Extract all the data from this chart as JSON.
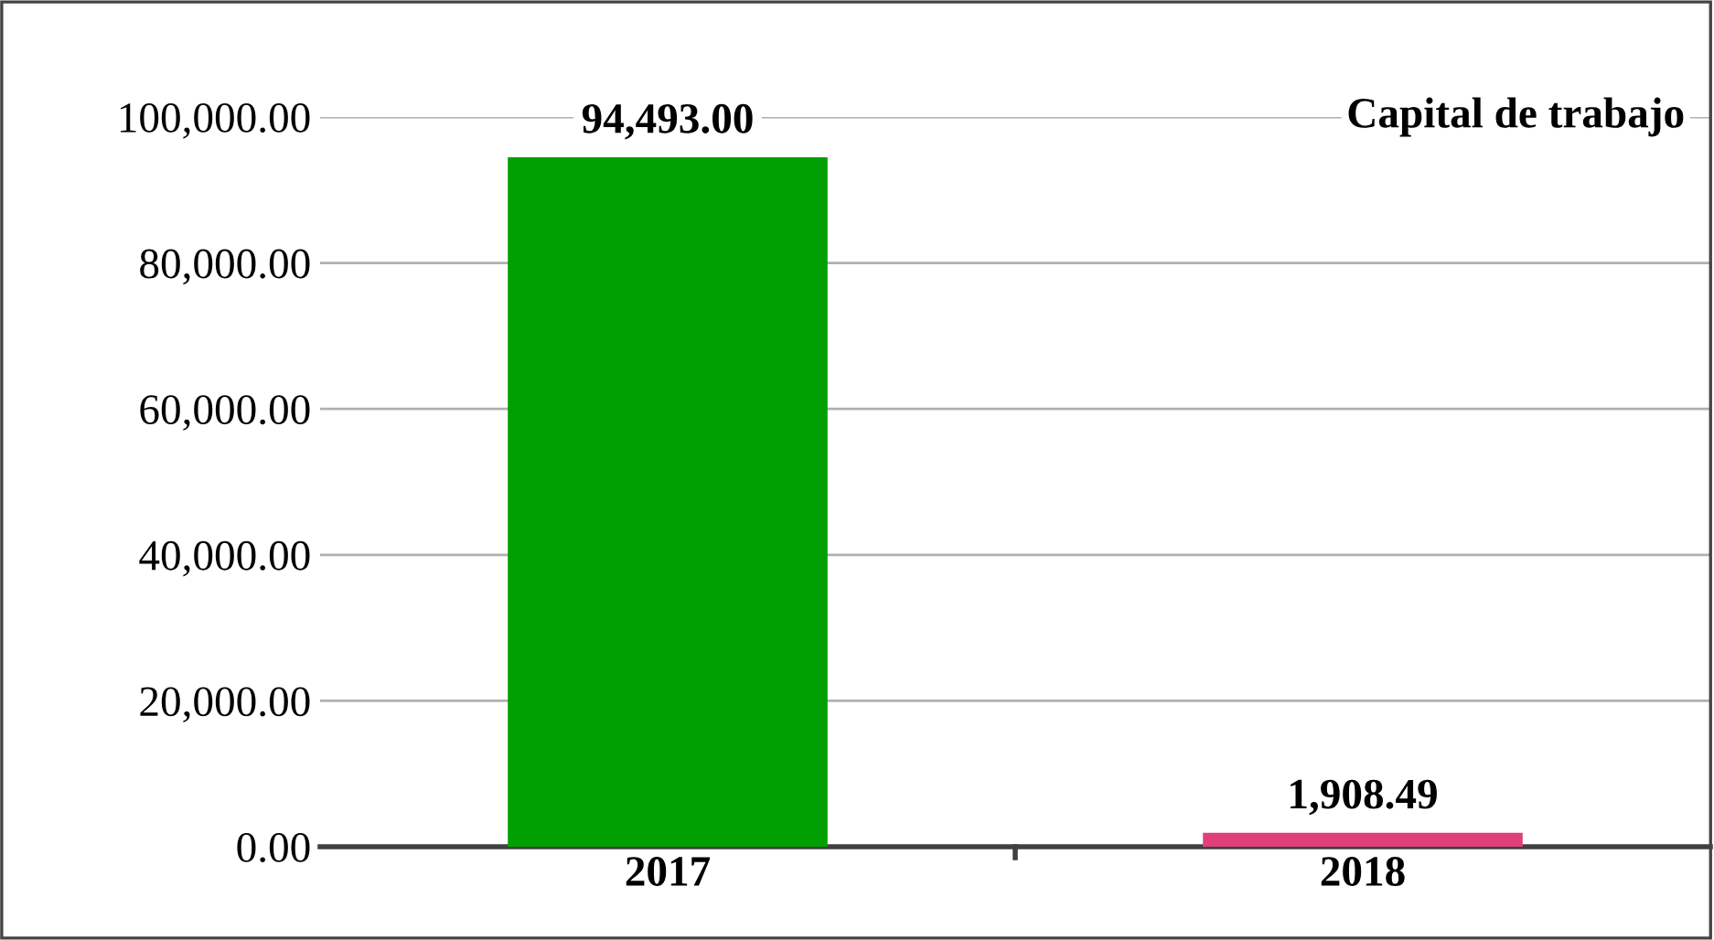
{
  "chart_data": {
    "type": "bar",
    "title": "Capital de trabajo",
    "categories": [
      "2017",
      "2018"
    ],
    "values": [
      94493.0,
      1908.49
    ],
    "colors": [
      "#00a000",
      "#e0407a"
    ],
    "value_labels": [
      "94,493.00",
      "1,908.49"
    ],
    "ylim": [
      0,
      100000
    ],
    "yticks": [
      {
        "value": 0,
        "label": "0.00"
      },
      {
        "value": 20000,
        "label": "20,000.00"
      },
      {
        "value": 40000,
        "label": "40,000.00"
      },
      {
        "value": 60000,
        "label": "60,000.00"
      },
      {
        "value": 80000,
        "label": "80,000.00"
      },
      {
        "value": 100000,
        "label": "100,000.00"
      }
    ],
    "grid": "y",
    "legend": false
  }
}
